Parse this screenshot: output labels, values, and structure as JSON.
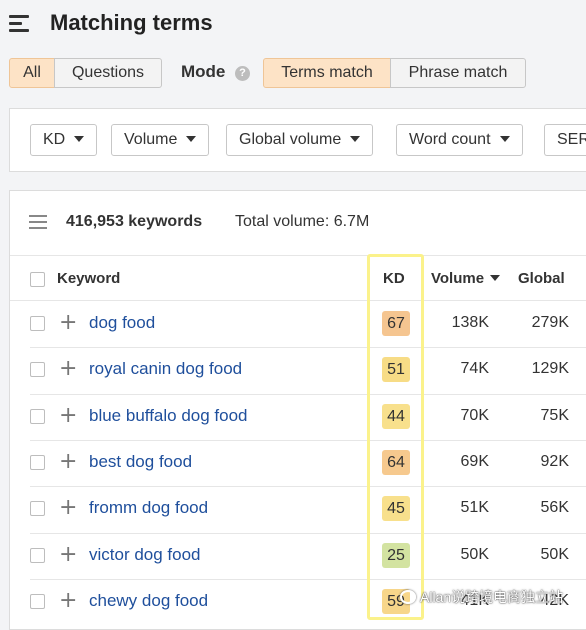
{
  "header": {
    "title": "Matching terms"
  },
  "type_tabs": [
    {
      "label": "All",
      "active": true
    },
    {
      "label": "Questions",
      "active": false
    }
  ],
  "mode": {
    "label": "Mode",
    "help_icon": "question-circle-icon",
    "options": [
      {
        "label": "Terms match",
        "active": true
      },
      {
        "label": "Phrase match",
        "active": false
      }
    ]
  },
  "filters": [
    "KD",
    "Volume",
    "Global volume",
    "Word count",
    "SERP"
  ],
  "summary": {
    "keywords": "416,953 keywords",
    "total_volume": "Total volume: 6.7M"
  },
  "table": {
    "columns": {
      "keyword": "Keyword",
      "kd": "KD",
      "volume": "Volume",
      "global": "Global"
    },
    "rows": [
      {
        "keyword": "dog food",
        "kd": "67",
        "kd_color": "#f5c590",
        "volume": "138K",
        "global": "279K"
      },
      {
        "keyword": "royal canin dog food",
        "kd": "51",
        "kd_color": "#f7dc86",
        "volume": "74K",
        "global": "129K"
      },
      {
        "keyword": "blue buffalo dog food",
        "kd": "44",
        "kd_color": "#f8e08c",
        "volume": "70K",
        "global": "75K"
      },
      {
        "keyword": "best dog food",
        "kd": "64",
        "kd_color": "#f6c98e",
        "volume": "69K",
        "global": "92K"
      },
      {
        "keyword": "fromm dog food",
        "kd": "45",
        "kd_color": "#f8e08c",
        "volume": "51K",
        "global": "56K"
      },
      {
        "keyword": "victor dog food",
        "kd": "25",
        "kd_color": "#d3e3a1",
        "volume": "50K",
        "global": "50K"
      },
      {
        "keyword": "chewy dog food",
        "kd": "59",
        "kd_color": "#f7d68a",
        "volume": "41K",
        "global": "42K"
      }
    ]
  },
  "watermark": "Allan说跨境电商独立站"
}
